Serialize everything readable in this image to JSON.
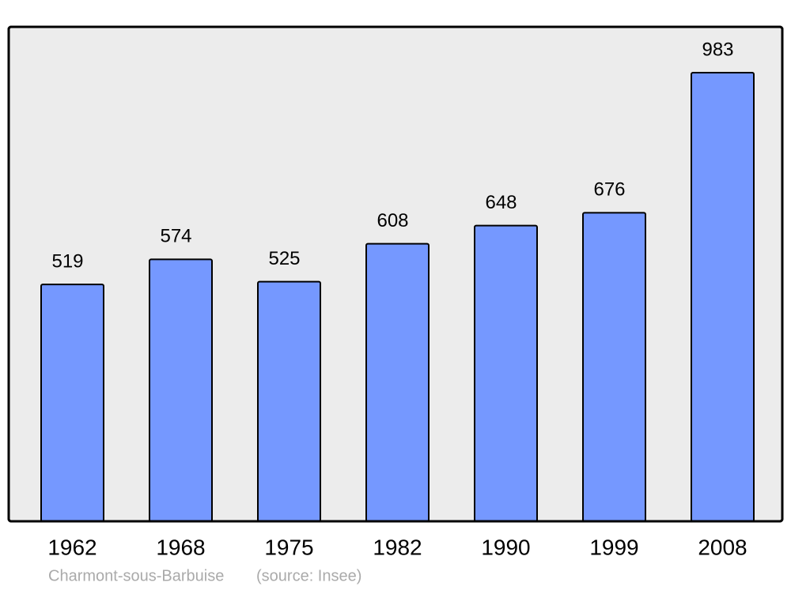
{
  "chart_data": {
    "type": "bar",
    "categories": [
      "1962",
      "1968",
      "1975",
      "1982",
      "1990",
      "1999",
      "2008"
    ],
    "values": [
      519,
      574,
      525,
      608,
      648,
      676,
      983
    ],
    "color": "#7598ff",
    "caption": "Charmont-sous-Barbuise",
    "source": "(source: Insee)"
  }
}
